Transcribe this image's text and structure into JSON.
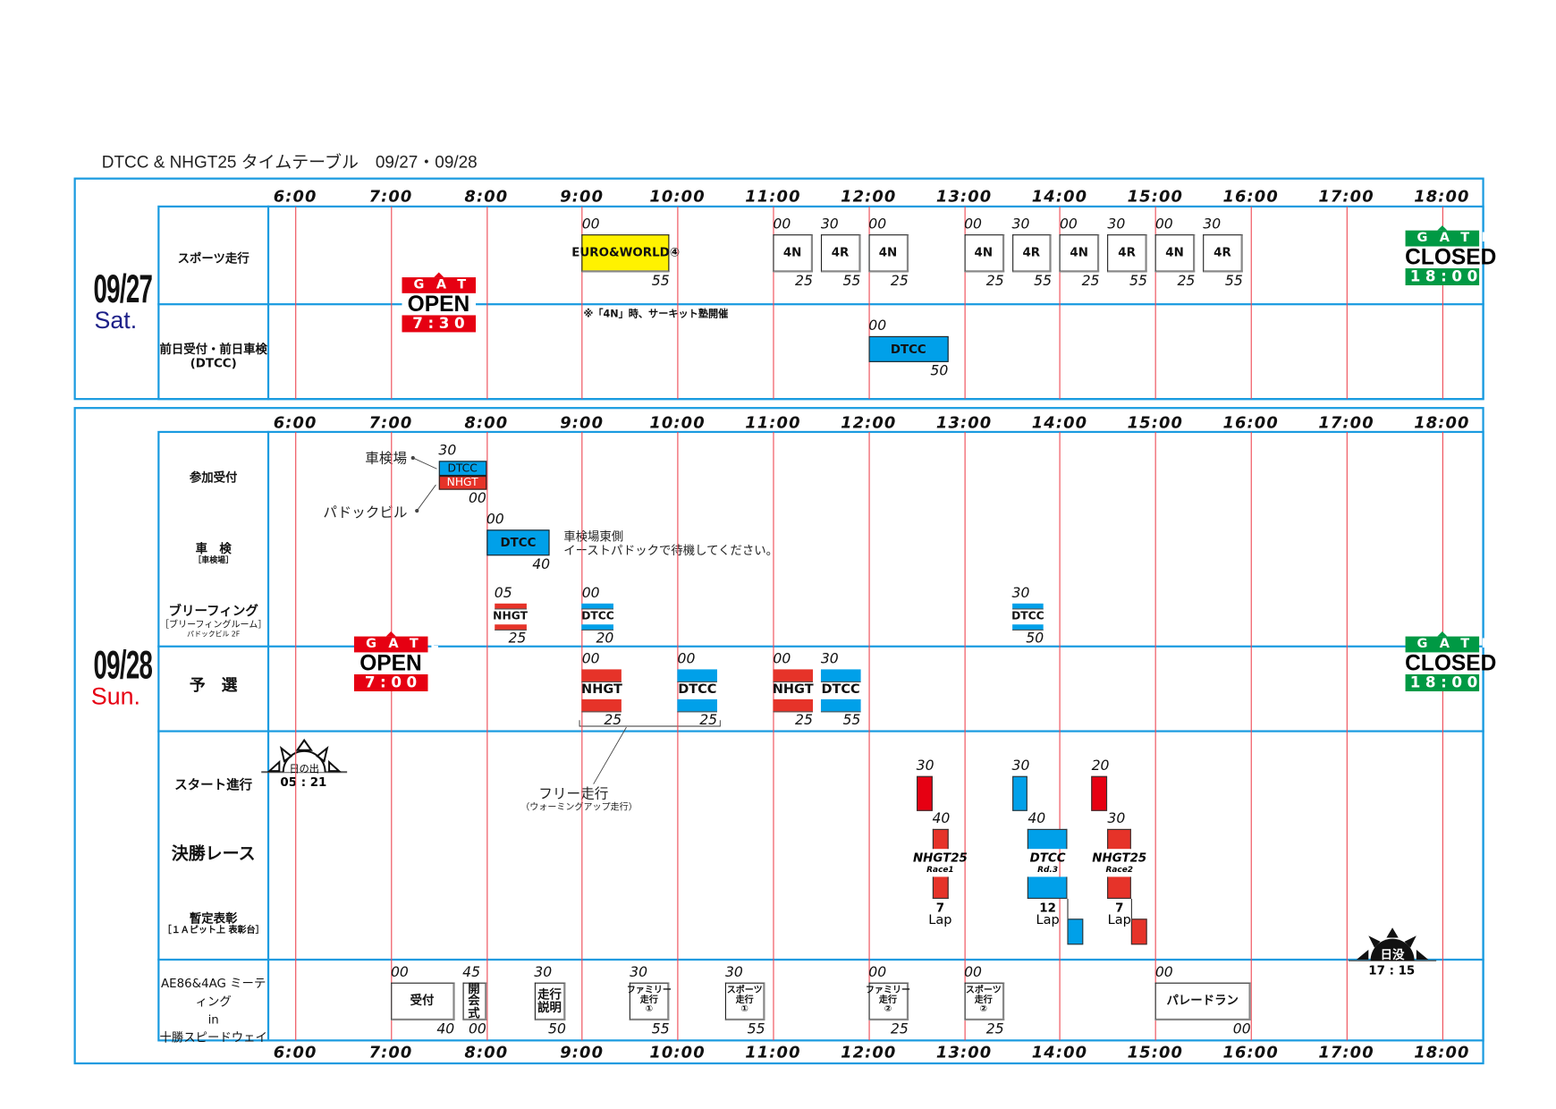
{
  "title": "DTCC & NHGT25 タイムテーブル　09/27・09/28",
  "colors": {
    "frame": "#1a9be0",
    "grid": "#ee4a55",
    "dtcc": "#00a0e9",
    "nhgt": "#e63329",
    "euro": "#fff200",
    "gate_open": "#e60012",
    "gate_closed": "#009944"
  },
  "hours": [
    "6:00",
    "7:00",
    "8:00",
    "9:00",
    "10:00",
    "11:00",
    "12:00",
    "13:00",
    "14:00",
    "15:00",
    "16:00",
    "17:00",
    "18:00"
  ],
  "day1": {
    "date": "09/27",
    "dow": "Sat.",
    "rows": {
      "sports": "スポーツ走行",
      "pre_reception": "前日受付・前日車検",
      "pre_reception_sub": "(DTCC)"
    },
    "gate_open": {
      "word": "GATE",
      "status": "OPEN",
      "time": "7:30"
    },
    "gate_closed": {
      "word": "GATE",
      "status": "CLOSED",
      "time": "18:00"
    },
    "note": "※「4N」時、サーキット塾開催",
    "sports_sessions": [
      {
        "label": "EURO&WORLD④",
        "start": "9:00",
        "end": "9:55",
        "kind": "yellow"
      },
      {
        "label": "4N",
        "start": "11:00",
        "end": "11:25",
        "kind": "white"
      },
      {
        "label": "4R",
        "start": "11:30",
        "end": "11:55",
        "kind": "white"
      },
      {
        "label": "4N",
        "start": "12:00",
        "end": "12:25",
        "kind": "white"
      },
      {
        "label": "4N",
        "start": "13:00",
        "end": "13:25",
        "kind": "white"
      },
      {
        "label": "4R",
        "start": "13:30",
        "end": "13:55",
        "kind": "white"
      },
      {
        "label": "4N",
        "start": "14:00",
        "end": "14:25",
        "kind": "white"
      },
      {
        "label": "4R",
        "start": "14:30",
        "end": "14:55",
        "kind": "white"
      },
      {
        "label": "4N",
        "start": "15:00",
        "end": "15:25",
        "kind": "white"
      },
      {
        "label": "4R",
        "start": "15:30",
        "end": "15:55",
        "kind": "white"
      }
    ],
    "pre_sessions": [
      {
        "label": "DTCC",
        "start": "12:00",
        "end": "12:50",
        "kind": "blue"
      }
    ]
  },
  "day2": {
    "date": "09/28",
    "dow": "Sun.",
    "rows": {
      "reception": "参加受付",
      "inspection": "車　検",
      "inspection_sub": "［車検場］",
      "briefing": "ブリーフィング",
      "briefing_sub": "［ブリーフィングルーム］",
      "briefing_sub2": "パドックビル 2F",
      "qualifying": "予　選",
      "start_proc": "スタート進行",
      "final": "決勝レース",
      "podium": "暫定表彰",
      "podium_sub": "［１Ａピット上 表彰台］",
      "ae86_1": "AE86&4AG ミーティング",
      "ae86_2": "in",
      "ae86_3": "十勝スピードウェイ"
    },
    "gate_open": {
      "word": "GATE",
      "status": "OPEN",
      "time": "7:00"
    },
    "gate_closed": {
      "word": "GATE",
      "status": "CLOSED",
      "time": "18:00"
    },
    "reception": {
      "start": "7:30",
      "end": "8:00",
      "top_label": "DTCC",
      "bottom_label": "NHGT",
      "place_top": "車検場",
      "place_bottom": "パドックビル"
    },
    "inspection": [
      {
        "label": "DTCC",
        "start": "8:00",
        "end": "8:40",
        "kind": "blue"
      }
    ],
    "inspection_note_1": "車検場東側",
    "inspection_note_2": "イーストパドックで待機してください。",
    "briefing": [
      {
        "label": "NHGT",
        "start": "8:05",
        "end": "8:25",
        "kind": "red"
      },
      {
        "label": "DTCC",
        "start": "9:00",
        "end": "9:20",
        "kind": "blue"
      },
      {
        "label": "DTCC",
        "start": "13:30",
        "end": "13:50",
        "kind": "blue"
      }
    ],
    "qualifying": [
      {
        "label": "NHGT",
        "start": "9:00",
        "end": "9:25",
        "kind": "red"
      },
      {
        "label": "DTCC",
        "start": "10:00",
        "end": "10:25",
        "kind": "blue"
      },
      {
        "label": "NHGT",
        "start": "11:00",
        "end": "11:25",
        "kind": "red"
      },
      {
        "label": "DTCC",
        "start": "11:30",
        "end": "11:55",
        "kind": "blue"
      }
    ],
    "free_run": "フリー走行",
    "free_run_sub": "（ウォーミングアップ走行）",
    "sunrise": {
      "label": "日の出",
      "time": "05 : 21"
    },
    "sunset": {
      "label": "日没",
      "time": "17 : 15"
    },
    "finals": [
      {
        "name": "NHGT25",
        "sub": "Race1",
        "kind": "red",
        "grid_start": "12:30",
        "race_start": "12:40",
        "race_end": "12:50",
        "laps": "7",
        "lap_unit": "Lap"
      },
      {
        "name": "DTCC",
        "sub": "Rd.3",
        "kind": "blue",
        "grid_start": "13:30",
        "race_start": "13:40",
        "race_end": "14:05",
        "podium_end": "14:15",
        "laps": "12",
        "lap_unit": "Lap"
      },
      {
        "name": "NHGT25",
        "sub": "Race2",
        "kind": "red",
        "grid_start": "14:20",
        "race_start": "14:30",
        "race_end": "14:45",
        "podium_end": "14:55",
        "laps": "7",
        "lap_unit": "Lap"
      }
    ],
    "ae86": [
      {
        "label": "受付",
        "start": "7:00",
        "end": "7:40",
        "kind": "white"
      },
      {
        "label": "開\n会\n式",
        "start": "7:45",
        "end": "8:00",
        "kind": "white"
      },
      {
        "label": "走行\n説明",
        "start": "8:30",
        "end": "8:50",
        "kind": "white"
      },
      {
        "label": "ファミリー\n走行\n①",
        "start": "9:30",
        "end": "9:55",
        "kind": "white"
      },
      {
        "label": "スポーツ\n走行\n①",
        "start": "10:30",
        "end": "10:55",
        "kind": "white"
      },
      {
        "label": "ファミリー\n走行\n②",
        "start": "12:00",
        "end": "12:25",
        "kind": "white"
      },
      {
        "label": "スポーツ\n走行\n②",
        "start": "13:00",
        "end": "13:25",
        "kind": "white"
      },
      {
        "label": "パレードラン",
        "start": "15:00",
        "end": "16:00",
        "kind": "white"
      }
    ]
  }
}
